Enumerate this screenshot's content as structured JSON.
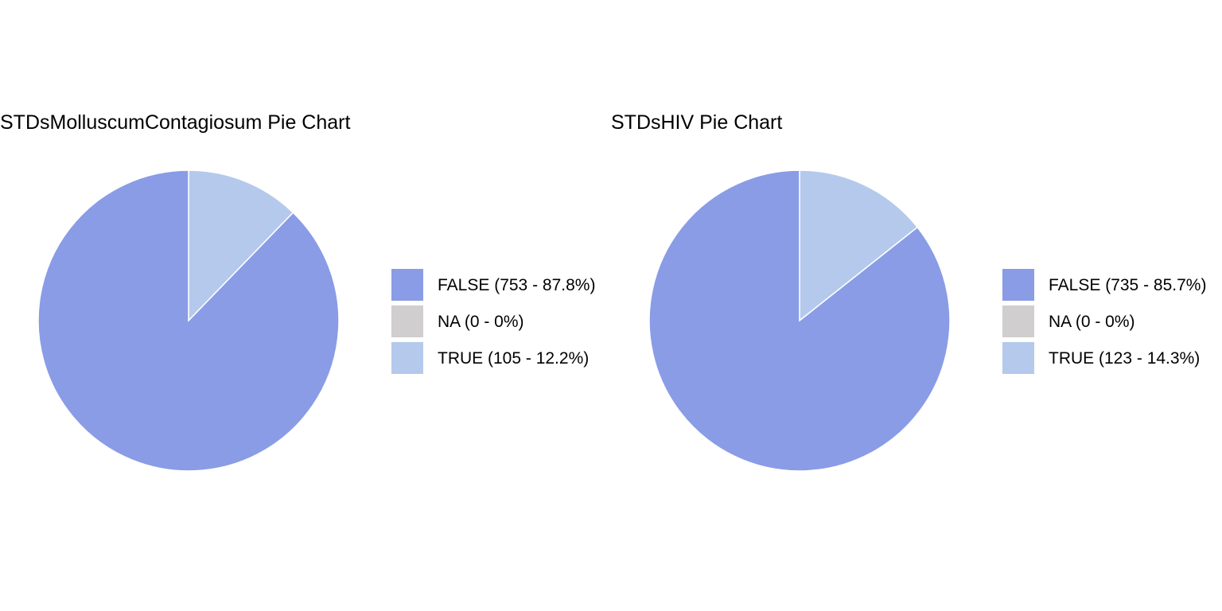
{
  "chart_data": [
    {
      "type": "pie",
      "title": "STDsMolluscumContagiosum Pie Chart",
      "slices": [
        {
          "category": "FALSE",
          "value": 753,
          "percent": 87.8,
          "label": "FALSE (753 - 87.8%)",
          "color": "#8A9CE6"
        },
        {
          "category": "NA",
          "value": 0,
          "percent": 0,
          "label": "NA (0 - 0%)",
          "color": "#D0CECE"
        },
        {
          "category": "TRUE",
          "value": 105,
          "percent": 12.2,
          "label": "TRUE (105 - 12.2%)",
          "color": "#B4C9EC"
        }
      ],
      "legend_position": "right"
    },
    {
      "type": "pie",
      "title": "STDsHIV Pie Chart",
      "slices": [
        {
          "category": "FALSE",
          "value": 735,
          "percent": 85.7,
          "label": "FALSE (735 - 85.7%)",
          "color": "#8A9CE6"
        },
        {
          "category": "NA",
          "value": 0,
          "percent": 0,
          "label": "NA (0 - 0%)",
          "color": "#D0CECE"
        },
        {
          "category": "TRUE",
          "value": 123,
          "percent": 14.3,
          "label": "TRUE (123 - 14.3%)",
          "color": "#B4C9EC"
        }
      ],
      "legend_position": "right"
    }
  ]
}
